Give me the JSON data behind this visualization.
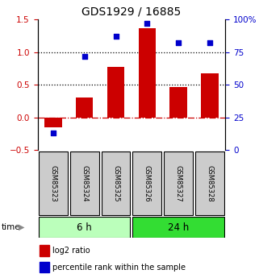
{
  "title": "GDS1929 / 16885",
  "samples": [
    "GSM85323",
    "GSM85324",
    "GSM85325",
    "GSM85326",
    "GSM85327",
    "GSM85328"
  ],
  "log2_ratio": [
    -0.15,
    0.3,
    0.78,
    1.37,
    0.46,
    0.68
  ],
  "percentile_rank": [
    13,
    72,
    87,
    97,
    82,
    82
  ],
  "groups": [
    {
      "label": "6 h",
      "indices": [
        0,
        1,
        2
      ],
      "color": "#bbffbb"
    },
    {
      "label": "24 h",
      "indices": [
        3,
        4,
        5
      ],
      "color": "#33dd33"
    }
  ],
  "bar_color": "#cc0000",
  "dot_color": "#0000cc",
  "left_ylim": [
    -0.5,
    1.5
  ],
  "right_ylim": [
    0,
    100
  ],
  "left_yticks": [
    -0.5,
    0.0,
    0.5,
    1.0,
    1.5
  ],
  "right_yticks": [
    0,
    25,
    50,
    75,
    100
  ],
  "right_yticklabels": [
    "0",
    "25",
    "50",
    "75",
    "100%"
  ],
  "hline_y": [
    0.5,
    1.0
  ],
  "zero_line_color": "#cc0000",
  "sample_box_color": "#cccccc",
  "legend_bar_label": "log2 ratio",
  "legend_dot_label": "percentile rank within the sample",
  "left_tick_color": "#cc0000",
  "right_tick_color": "#0000cc",
  "figsize": [
    3.21,
    3.45
  ],
  "dpi": 100
}
